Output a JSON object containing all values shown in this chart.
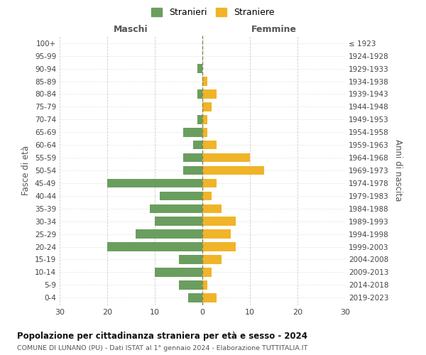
{
  "age_groups": [
    "0-4",
    "5-9",
    "10-14",
    "15-19",
    "20-24",
    "25-29",
    "30-34",
    "35-39",
    "40-44",
    "45-49",
    "50-54",
    "55-59",
    "60-64",
    "65-69",
    "70-74",
    "75-79",
    "80-84",
    "85-89",
    "90-94",
    "95-99",
    "100+"
  ],
  "birth_years": [
    "2019-2023",
    "2014-2018",
    "2009-2013",
    "2004-2008",
    "1999-2003",
    "1994-1998",
    "1989-1993",
    "1984-1988",
    "1979-1983",
    "1974-1978",
    "1969-1973",
    "1964-1968",
    "1959-1963",
    "1954-1958",
    "1949-1953",
    "1944-1948",
    "1939-1943",
    "1934-1938",
    "1929-1933",
    "1924-1928",
    "≤ 1923"
  ],
  "maschi": [
    3,
    5,
    10,
    5,
    20,
    14,
    10,
    11,
    9,
    20,
    4,
    4,
    2,
    4,
    1,
    0,
    1,
    0,
    1,
    0,
    0
  ],
  "femmine": [
    3,
    1,
    2,
    4,
    7,
    6,
    7,
    4,
    2,
    3,
    13,
    10,
    3,
    1,
    1,
    2,
    3,
    1,
    0,
    0,
    0
  ],
  "maschi_color": "#6a9e5e",
  "femmine_color": "#f0b429",
  "center_line_color": "#888855",
  "grid_color": "#cccccc",
  "title": "Popolazione per cittadinanza straniera per età e sesso - 2024",
  "subtitle": "COMUNE DI LUNANO (PU) - Dati ISTAT al 1° gennaio 2024 - Elaborazione TUTTITALIA.IT",
  "xlabel_left": "Maschi",
  "xlabel_right": "Femmine",
  "ylabel_left": "Fasce di età",
  "ylabel_right": "Anni di nascita",
  "legend_maschi": "Stranieri",
  "legend_femmine": "Straniere",
  "xlim": 30,
  "background_color": "#ffffff"
}
